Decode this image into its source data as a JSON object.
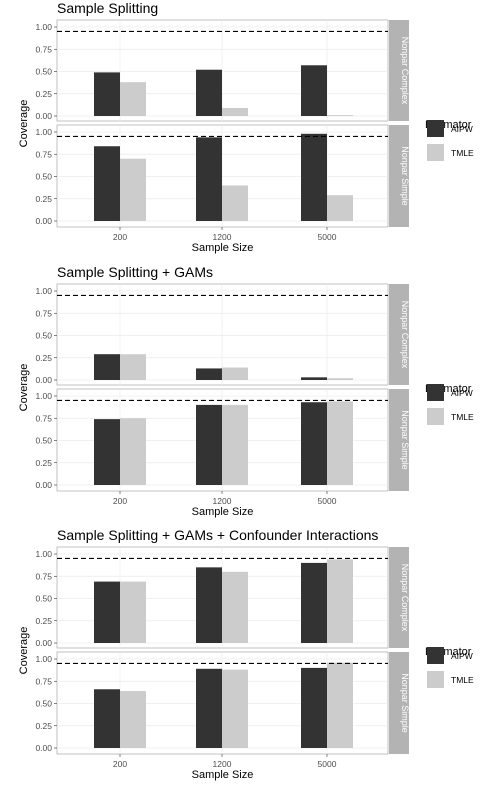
{
  "colors": {
    "AIPW": "#333333",
    "TMLE": "#cccccc",
    "strip": "#b3b3b3",
    "grid": "#ebebeb",
    "reference_line": "#000000"
  },
  "legend": {
    "title": "Estimator",
    "entries": [
      "AIPW",
      "TMLE"
    ]
  },
  "chart_data": [
    {
      "type": "bar",
      "title": "Sample Splitting",
      "xlabel": "Sample Size",
      "ylabel": "Coverage",
      "categories": [
        "200",
        "1200",
        "5000"
      ],
      "ylim": [
        0,
        1
      ],
      "yticks": [
        "0.00",
        "0.25",
        "0.50",
        "0.75",
        "1.00"
      ],
      "reference_line": 0.95,
      "grid": true,
      "legend_position": "right",
      "facets": [
        {
          "label": "Nonpar Complex",
          "series": [
            {
              "name": "AIPW",
              "values": [
                0.49,
                0.52,
                0.57
              ]
            },
            {
              "name": "TMLE",
              "values": [
                0.38,
                0.09,
                0.01
              ]
            }
          ]
        },
        {
          "label": "Nonpar Simple",
          "series": [
            {
              "name": "AIPW",
              "values": [
                0.84,
                0.94,
                0.98
              ]
            },
            {
              "name": "TMLE",
              "values": [
                0.7,
                0.4,
                0.29
              ]
            }
          ]
        }
      ]
    },
    {
      "type": "bar",
      "title": "Sample Splitting + GAMs",
      "xlabel": "Sample Size",
      "ylabel": "Coverage",
      "categories": [
        "200",
        "1200",
        "5000"
      ],
      "ylim": [
        0,
        1
      ],
      "yticks": [
        "0.00",
        "0.25",
        "0.50",
        "0.75",
        "1.00"
      ],
      "reference_line": 0.95,
      "grid": true,
      "legend_position": "right",
      "facets": [
        {
          "label": "Nonpar Complex",
          "series": [
            {
              "name": "AIPW",
              "values": [
                0.29,
                0.13,
                0.03
              ]
            },
            {
              "name": "TMLE",
              "values": [
                0.29,
                0.14,
                0.02
              ]
            }
          ]
        },
        {
          "label": "Nonpar Simple",
          "series": [
            {
              "name": "AIPW",
              "values": [
                0.74,
                0.9,
                0.93
              ]
            },
            {
              "name": "TMLE",
              "values": [
                0.75,
                0.9,
                0.94
              ]
            }
          ]
        }
      ]
    },
    {
      "type": "bar",
      "title": "Sample Splitting + GAMs + Confounder Interactions",
      "xlabel": "Sample Size",
      "ylabel": "Coverage",
      "categories": [
        "200",
        "1200",
        "5000"
      ],
      "ylim": [
        0,
        1
      ],
      "yticks": [
        "0.00",
        "0.25",
        "0.50",
        "0.75",
        "1.00"
      ],
      "reference_line": 0.95,
      "grid": true,
      "legend_position": "right",
      "facets": [
        {
          "label": "Nonpar Complex",
          "series": [
            {
              "name": "AIPW",
              "values": [
                0.69,
                0.85,
                0.9
              ]
            },
            {
              "name": "TMLE",
              "values": [
                0.69,
                0.8,
                0.94
              ]
            }
          ]
        },
        {
          "label": "Nonpar Simple",
          "series": [
            {
              "name": "AIPW",
              "values": [
                0.66,
                0.89,
                0.9
              ]
            },
            {
              "name": "TMLE",
              "values": [
                0.64,
                0.88,
                0.96
              ]
            }
          ]
        }
      ]
    }
  ]
}
